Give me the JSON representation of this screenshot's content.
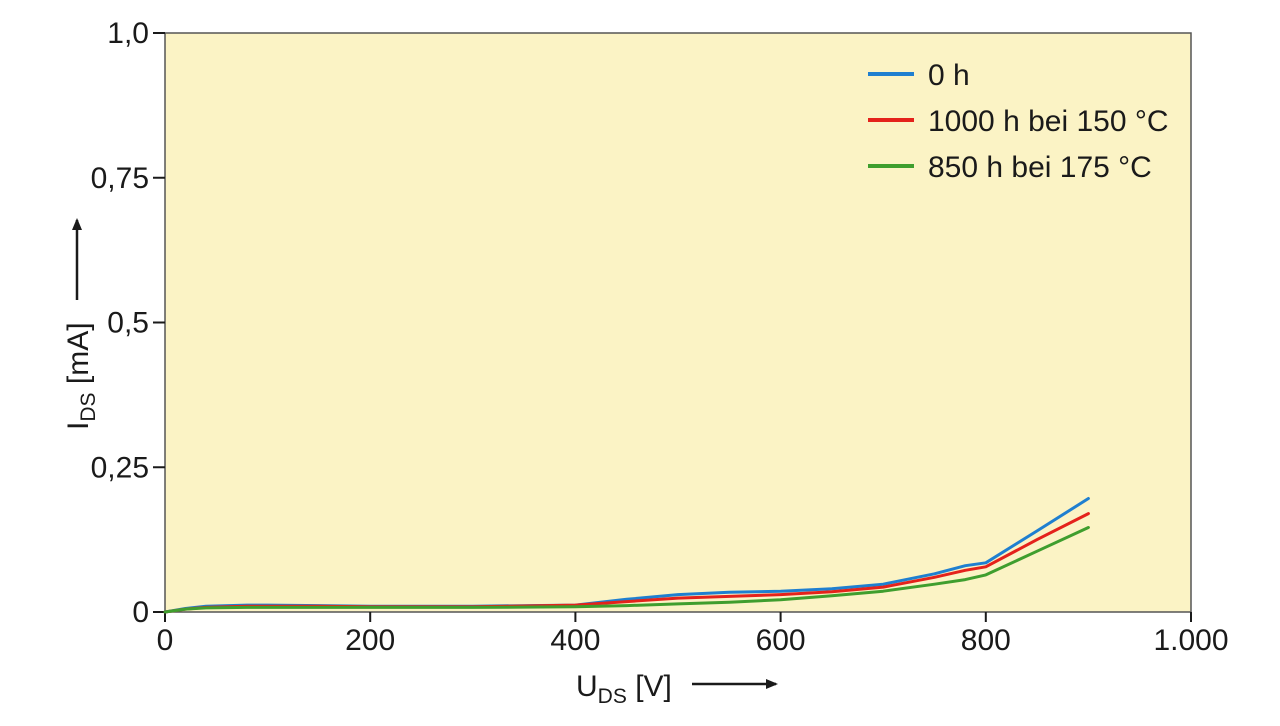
{
  "chart_data": {
    "type": "line",
    "title": "",
    "xlabel": {
      "main": "U",
      "sub": "DS",
      "unit": " [V]"
    },
    "ylabel": {
      "main": "I",
      "sub": "DS",
      "unit": " [mA]"
    },
    "xlim": [
      0,
      1000
    ],
    "ylim": [
      0,
      1.0
    ],
    "x_ticks": [
      0,
      200,
      400,
      600,
      800,
      1000
    ],
    "x_tick_labels": [
      "0",
      "200",
      "400",
      "600",
      "800",
      "1.000"
    ],
    "y_ticks": [
      0,
      0.25,
      0.5,
      0.75,
      1.0
    ],
    "y_tick_labels": [
      "0",
      "0,25",
      "0,5",
      "0,75",
      "1,0"
    ],
    "grid": false,
    "legend_position": "top-right",
    "plot_background": "#fbf3c5",
    "series": [
      {
        "name": "0 h",
        "color": "#1f7fd0",
        "x": [
          0,
          20,
          40,
          80,
          100,
          150,
          200,
          300,
          400,
          450,
          500,
          550,
          600,
          650,
          700,
          750,
          780,
          800,
          850,
          900
        ],
        "y": [
          0,
          0.006,
          0.01,
          0.012,
          0.012,
          0.011,
          0.01,
          0.01,
          0.012,
          0.022,
          0.03,
          0.034,
          0.036,
          0.04,
          0.048,
          0.066,
          0.08,
          0.085,
          0.14,
          0.196
        ]
      },
      {
        "name": "1000 h bei 150 °C",
        "color": "#e4221b",
        "x": [
          0,
          20,
          40,
          80,
          100,
          150,
          200,
          300,
          400,
          450,
          500,
          550,
          600,
          650,
          700,
          750,
          780,
          800,
          850,
          900
        ],
        "y": [
          0,
          0.005,
          0.008,
          0.01,
          0.01,
          0.01,
          0.009,
          0.009,
          0.012,
          0.018,
          0.024,
          0.027,
          0.03,
          0.035,
          0.043,
          0.06,
          0.072,
          0.078,
          0.125,
          0.17
        ]
      },
      {
        "name": "850 h bei 175 °C",
        "color": "#3f9e2e",
        "x": [
          0,
          20,
          40,
          80,
          100,
          150,
          200,
          300,
          400,
          450,
          500,
          550,
          600,
          650,
          700,
          750,
          780,
          800,
          850,
          900
        ],
        "y": [
          0,
          0.005,
          0.007,
          0.008,
          0.008,
          0.008,
          0.008,
          0.008,
          0.009,
          0.011,
          0.014,
          0.017,
          0.021,
          0.028,
          0.036,
          0.048,
          0.056,
          0.064,
          0.105,
          0.146
        ]
      }
    ]
  }
}
